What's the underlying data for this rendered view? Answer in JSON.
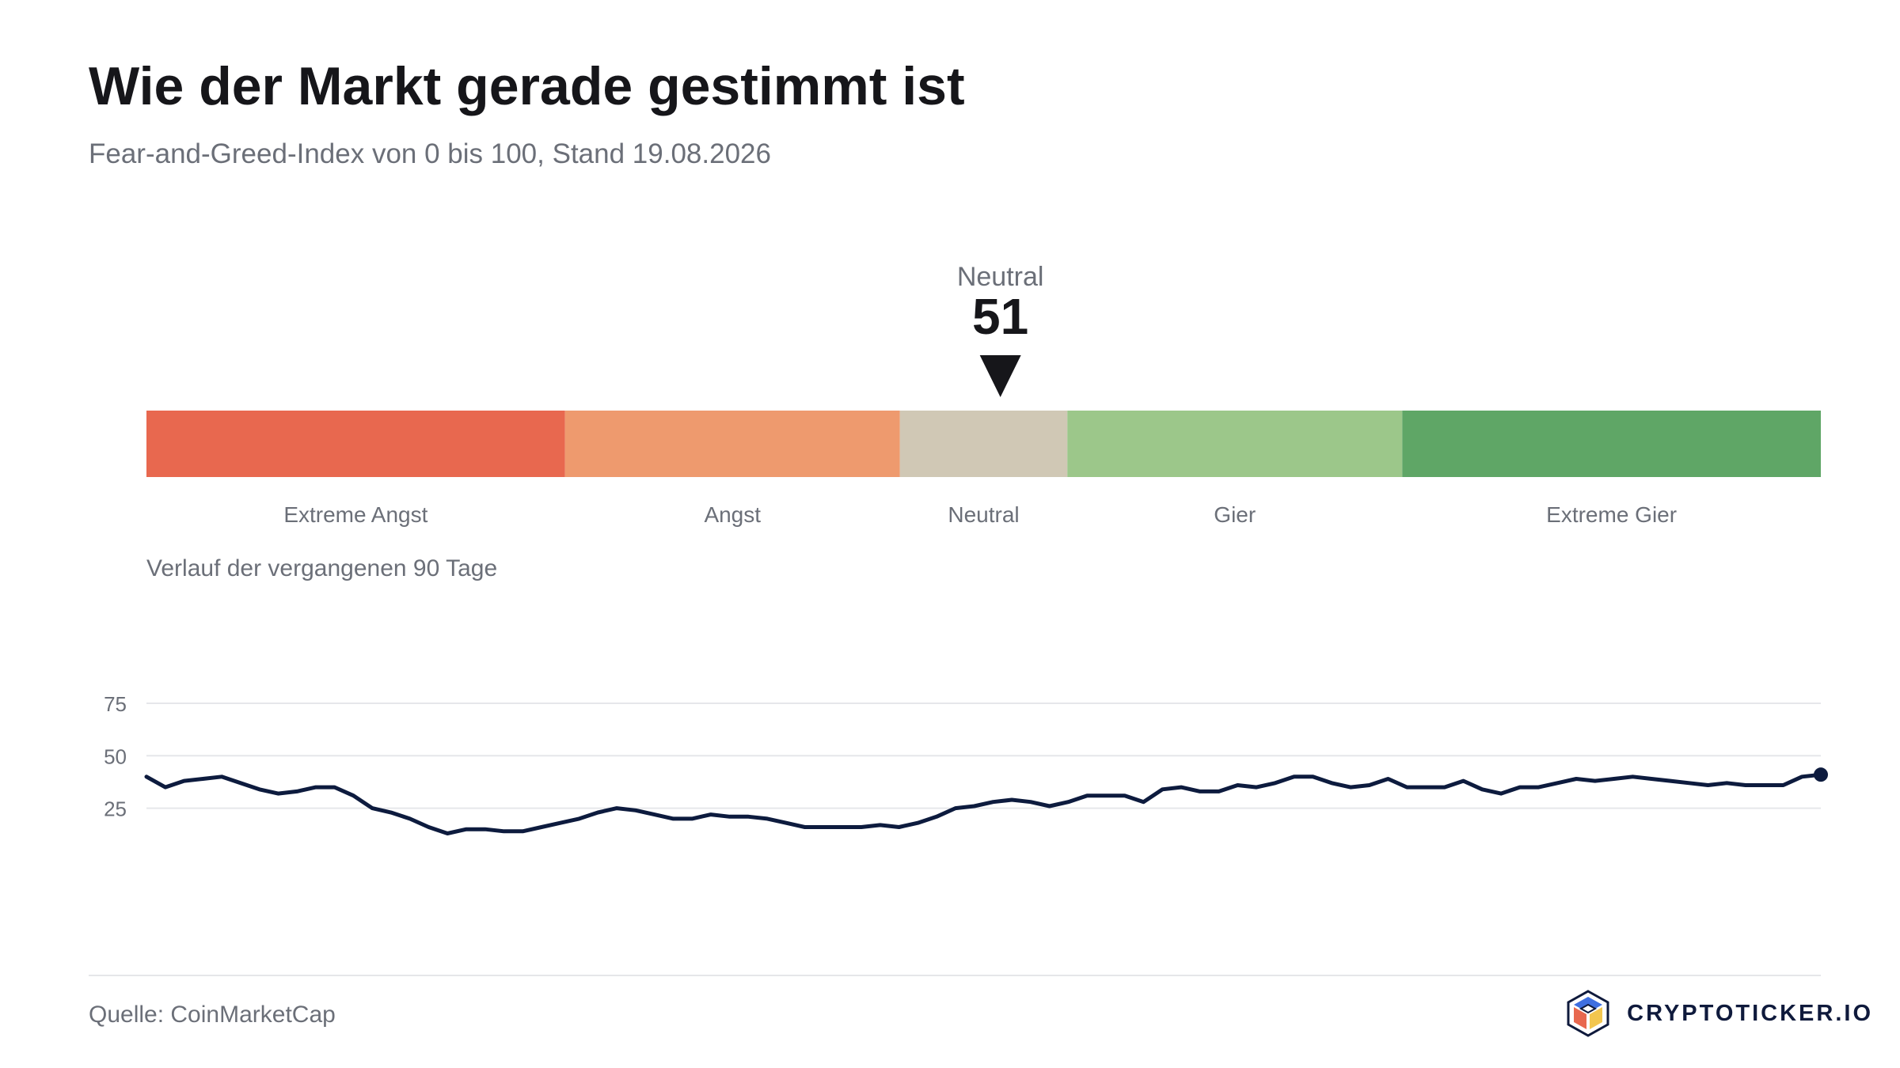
{
  "header": {
    "title": "Wie der Markt gerade gestimmt ist",
    "subtitle": "Fear-and-Greed-Index von 0 bis 100, Stand 19.08.2026"
  },
  "footer": {
    "source": "Quelle: CoinMarketCap",
    "brand": "CRYPTOTICKER.IO",
    "brand_logo_icon": "cube-logo-icon"
  },
  "colors": {
    "extreme_fear": "#e8684f",
    "fear": "#ee9a6e",
    "neutral": "#d0c8b5",
    "greed": "#9cc78a",
    "extreme_greed": "#5fa666",
    "line": "#0d1b3e",
    "pointer": "#16161a"
  },
  "chart_data": [
    {
      "type": "gauge",
      "range": [
        0,
        100
      ],
      "value": 51,
      "value_label": "Neutral",
      "segments": [
        {
          "label": "Extreme Angst",
          "from": 0,
          "to": 25,
          "color": "#e8684f"
        },
        {
          "label": "Angst",
          "from": 25,
          "to": 45,
          "color": "#ee9a6e"
        },
        {
          "label": "Neutral",
          "from": 45,
          "to": 55,
          "color": "#d0c8b5"
        },
        {
          "label": "Gier",
          "from": 55,
          "to": 75,
          "color": "#9cc78a"
        },
        {
          "label": "Extreme Gier",
          "from": 75,
          "to": 100,
          "color": "#5fa666"
        }
      ]
    },
    {
      "type": "line",
      "title": "Verlauf der vergangenen 90 Tage",
      "ylim": [
        0,
        100
      ],
      "yticks": [
        25,
        50,
        75
      ],
      "grid": true,
      "series": [
        {
          "values": [
            40,
            35,
            38,
            39,
            40,
            37,
            34,
            32,
            33,
            35,
            35,
            31,
            25,
            23,
            20,
            16,
            13,
            15,
            15,
            14,
            14,
            16,
            18,
            20,
            23,
            25,
            24,
            22,
            20,
            20,
            22,
            21,
            21,
            20,
            18,
            16,
            16,
            16,
            16,
            17,
            16,
            18,
            21,
            25,
            26,
            28,
            29,
            28,
            26,
            28,
            31,
            31,
            31,
            28,
            34,
            35,
            33,
            33,
            36,
            35,
            37,
            40,
            40,
            37,
            35,
            36,
            39,
            35,
            35,
            35,
            38,
            34,
            32,
            35,
            35,
            37,
            39,
            38,
            39,
            40,
            39,
            38,
            37,
            36,
            37,
            36,
            36,
            36,
            40,
            41
          ]
        }
      ]
    }
  ]
}
